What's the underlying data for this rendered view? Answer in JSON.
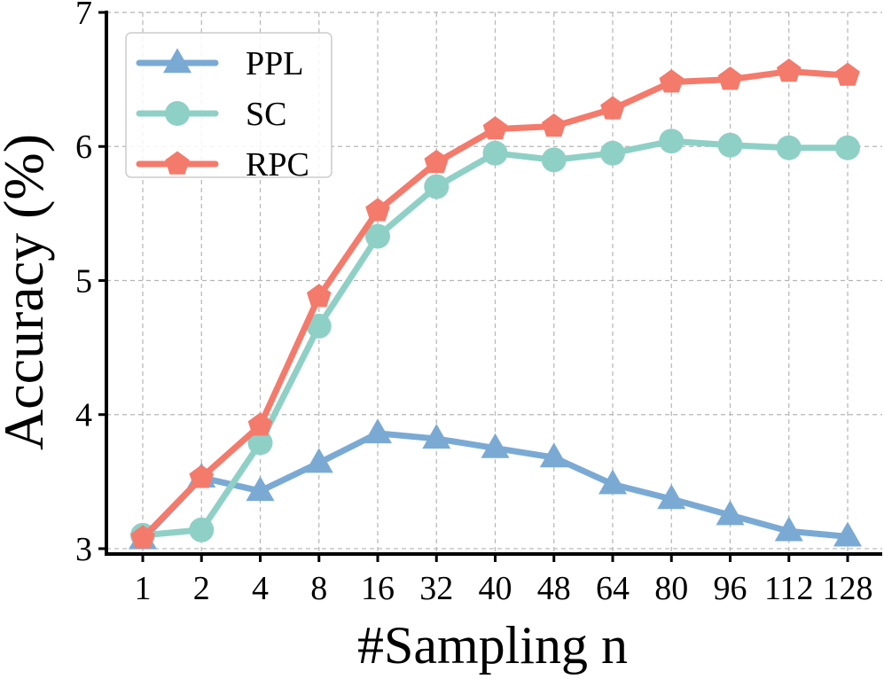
{
  "chart_data": {
    "type": "line",
    "title": "",
    "xlabel": "#Sampling n",
    "ylabel": "Accuracy (%)",
    "categories": [
      "1",
      "2",
      "4",
      "8",
      "16",
      "32",
      "40",
      "48",
      "64",
      "80",
      "96",
      "112",
      "128"
    ],
    "ylim": [
      2.96,
      7.0
    ],
    "yticks": [
      3,
      4,
      5,
      6,
      7
    ],
    "grid": true,
    "legend_position": "top-left",
    "series": [
      {
        "name": "PPL",
        "color": "#7aaad4",
        "marker": "triangle",
        "values": [
          3.07,
          3.53,
          3.43,
          3.64,
          3.86,
          3.82,
          3.75,
          3.68,
          3.48,
          3.37,
          3.25,
          3.13,
          3.09
        ]
      },
      {
        "name": "SC",
        "color": "#8fd0c6",
        "marker": "circle",
        "values": [
          3.1,
          3.14,
          3.79,
          4.66,
          5.33,
          5.7,
          5.95,
          5.9,
          5.95,
          6.04,
          6.01,
          5.99,
          5.99
        ]
      },
      {
        "name": "RPC",
        "color": "#f47a6c",
        "marker": "pentagon",
        "values": [
          3.08,
          3.53,
          3.92,
          4.88,
          5.52,
          5.88,
          6.13,
          6.15,
          6.28,
          6.48,
          6.5,
          6.56,
          6.53
        ]
      }
    ]
  }
}
